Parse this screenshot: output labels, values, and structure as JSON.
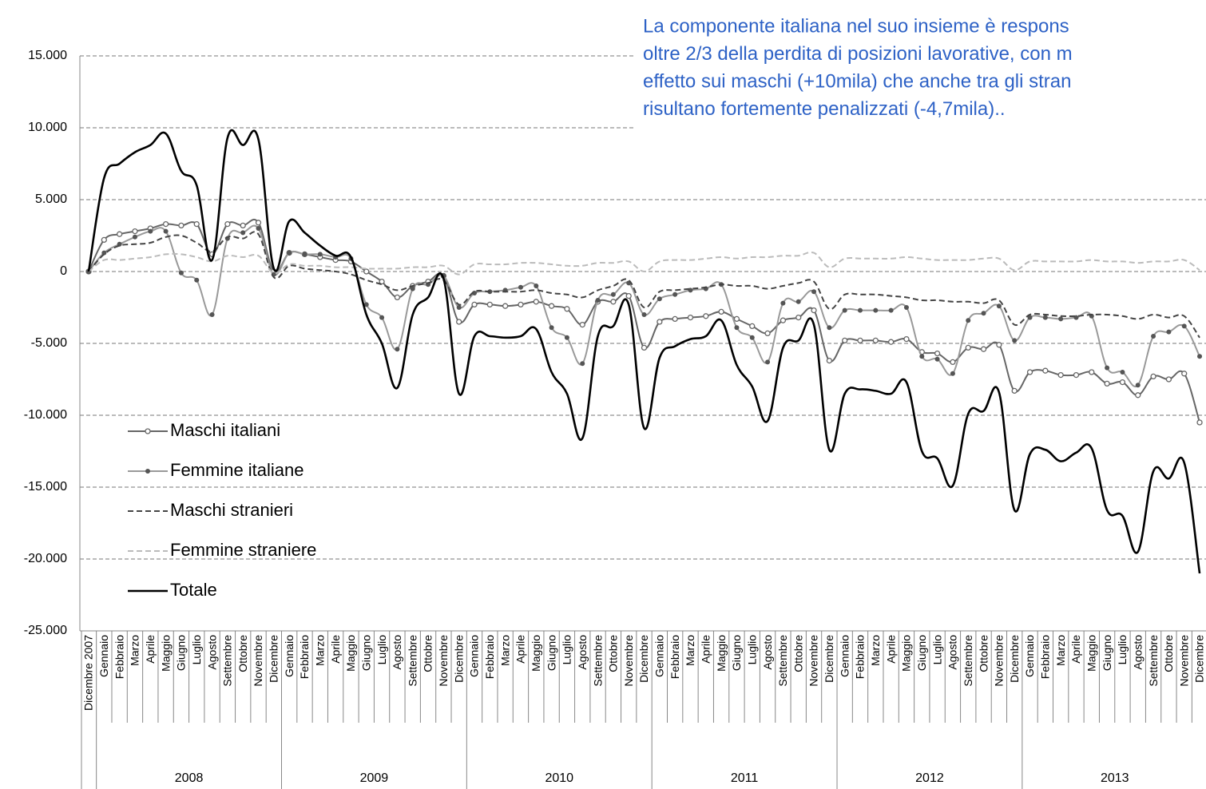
{
  "chart_data": {
    "type": "line",
    "annotation": [
      "La componente italiana nel suo insieme è respons",
      "oltre 2/3 della perdita di posizioni lavorative, con m",
      "effetto sui maschi (+10mila) che anche tra gli stran",
      "risultano fortemente penalizzati (-4,7mila).."
    ],
    "categories": [
      "Dicembre 2007",
      "Gennaio",
      "Febbraio",
      "Marzo",
      "Aprile",
      "Maggio",
      "Giugno",
      "Luglio",
      "Agosto",
      "Settembre",
      "Ottobre",
      "Novembre",
      "Dicembre",
      "Gennaio",
      "Febbraio",
      "Marzo",
      "Aprile",
      "Maggio",
      "Giugno",
      "Luglio",
      "Agosto",
      "Settembre",
      "Ottobre",
      "Novembre",
      "Dicembre",
      "Gennaio",
      "Febbraio",
      "Marzo",
      "Aprile",
      "Maggio",
      "Giugno",
      "Luglio",
      "Agosto",
      "Settembre",
      "Ottobre",
      "Novembre",
      "Dicembre",
      "Gennaio",
      "Febbraio",
      "Marzo",
      "Aprile",
      "Maggio",
      "Giugno",
      "Luglio",
      "Agosto",
      "Settembre",
      "Ottobre",
      "Novembre",
      "Dicembre",
      "Gennaio",
      "Febbraio",
      "Marzo",
      "Aprile",
      "Maggio",
      "Giugno",
      "Luglio",
      "Agosto",
      "Settembre",
      "Ottobre",
      "Novembre",
      "Dicembre",
      "Gennaio",
      "Febbraio",
      "Marzo",
      "Aprile",
      "Maggio",
      "Giugno",
      "Luglio",
      "Agosto",
      "Settembre",
      "Ottobre",
      "Novembre",
      "Dicembre"
    ],
    "years": [
      "2008",
      "2009",
      "2010",
      "2011",
      "2012",
      "2013"
    ],
    "ylim": [
      -25000,
      15000
    ],
    "yticks": [
      {
        "value": -25000,
        "label": "-25.000"
      },
      {
        "value": -20000,
        "label": "-20.000"
      },
      {
        "value": -15000,
        "label": "-15.000"
      },
      {
        "value": -10000,
        "label": "-10.000"
      },
      {
        "value": -5000,
        "label": "-5.000"
      },
      0,
      {
        "value": 5000,
        "label": "5.000"
      },
      {
        "value": 10000,
        "label": "10.000"
      },
      {
        "value": 15000,
        "label": "15.000"
      }
    ],
    "grid": true,
    "legend": "left",
    "series": [
      {
        "name": "Maschi italiani",
        "color": "#666666",
        "dash": "none",
        "marker": "open-circle",
        "values": [
          0,
          2200,
          2600,
          2800,
          3000,
          3300,
          3200,
          3300,
          1200,
          3300,
          3200,
          3400,
          0,
          1300,
          1200,
          1000,
          800,
          700,
          0,
          -700,
          -1800,
          -1000,
          -700,
          -300,
          -3500,
          -2300,
          -2300,
          -2400,
          -2300,
          -2100,
          -2400,
          -2600,
          -3700,
          -2100,
          -2100,
          -1700,
          -5300,
          -3500,
          -3300,
          -3200,
          -3100,
          -2800,
          -3300,
          -3800,
          -4300,
          -3400,
          -3200,
          -2700,
          -6200,
          -4800,
          -4800,
          -4800,
          -4900,
          -4700,
          -5600,
          -5700,
          -6300,
          -5300,
          -5400,
          -5100,
          -8300,
          -7000,
          -6900,
          -7200,
          -7200,
          -7000,
          -7800,
          -7700,
          -8600,
          -7300,
          -7500,
          -7100,
          -10500
        ]
      },
      {
        "name": "Femmine italiane",
        "color": "#999999",
        "dash": "none",
        "marker": "filled-circle",
        "values": [
          0,
          1300,
          1900,
          2400,
          2800,
          2800,
          -100,
          -600,
          -3000,
          2300,
          2700,
          3000,
          -200,
          1300,
          1200,
          1200,
          1000,
          900,
          -2300,
          -3200,
          -5400,
          -1200,
          -900,
          -300,
          -2500,
          -1500,
          -1400,
          -1300,
          -1100,
          -1000,
          -3900,
          -4600,
          -6400,
          -2000,
          -1600,
          -800,
          -3000,
          -1900,
          -1600,
          -1300,
          -1200,
          -900,
          -3900,
          -4600,
          -6300,
          -2200,
          -2100,
          -1400,
          -3900,
          -2700,
          -2700,
          -2700,
          -2700,
          -2500,
          -5900,
          -6100,
          -7100,
          -3400,
          -2900,
          -2400,
          -4800,
          -3200,
          -3200,
          -3300,
          -3200,
          -3100,
          -6700,
          -7000,
          -7900,
          -4500,
          -4200,
          -3800,
          -5900
        ]
      },
      {
        "name": "Maschi stranieri",
        "color": "#444444",
        "dash": "dashed",
        "marker": "none",
        "values": [
          0,
          1200,
          1800,
          1900,
          2000,
          2400,
          2500,
          2000,
          1400,
          2400,
          2300,
          2600,
          -400,
          400,
          200,
          100,
          0,
          -200,
          -600,
          -900,
          -1300,
          -1000,
          -800,
          -600,
          -2300,
          -1400,
          -1400,
          -1400,
          -1400,
          -1300,
          -1500,
          -1600,
          -1800,
          -1300,
          -1000,
          -600,
          -2500,
          -1400,
          -1300,
          -1200,
          -1100,
          -900,
          -1000,
          -1000,
          -1200,
          -1000,
          -800,
          -700,
          -2600,
          -1600,
          -1600,
          -1600,
          -1700,
          -1800,
          -2000,
          -2000,
          -2100,
          -2100,
          -2200,
          -2000,
          -3700,
          -3000,
          -3000,
          -3100,
          -3100,
          -3000,
          -3000,
          -3100,
          -3300,
          -3000,
          -3200,
          -3100,
          -4600
        ]
      },
      {
        "name": "Femmine straniere",
        "color": "#bbbbbb",
        "dash": "dashed",
        "marker": "none",
        "values": [
          0,
          800,
          800,
          900,
          1000,
          1200,
          1200,
          1000,
          700,
          1100,
          1000,
          1100,
          -100,
          500,
          400,
          400,
          300,
          300,
          200,
          200,
          200,
          300,
          300,
          400,
          -200,
          500,
          500,
          500,
          600,
          600,
          500,
          400,
          400,
          600,
          600,
          700,
          0,
          700,
          800,
          800,
          900,
          1000,
          900,
          1000,
          1000,
          1100,
          1100,
          1300,
          300,
          900,
          900,
          900,
          900,
          1000,
          900,
          800,
          800,
          800,
          900,
          900,
          100,
          700,
          700,
          700,
          700,
          800,
          700,
          700,
          600,
          700,
          700,
          800,
          100
        ]
      },
      {
        "name": "Totale",
        "color": "#000000",
        "dash": "none",
        "marker": "none",
        "values": [
          0,
          6500,
          7500,
          8300,
          8800,
          9600,
          7000,
          6000,
          800,
          9300,
          8800,
          9200,
          200,
          3500,
          2700,
          1800,
          1100,
          1000,
          -3000,
          -5000,
          -8100,
          -3000,
          -1800,
          -500,
          -8500,
          -4500,
          -4500,
          -4600,
          -4500,
          -4000,
          -7000,
          -8500,
          -11600,
          -4500,
          -3800,
          -2300,
          -10900,
          -6000,
          -5200,
          -4700,
          -4500,
          -3400,
          -6500,
          -8000,
          -10400,
          -5300,
          -4800,
          -3700,
          -12400,
          -8500,
          -8200,
          -8300,
          -8500,
          -7700,
          -12500,
          -13000,
          -14900,
          -9900,
          -9700,
          -8400,
          -16600,
          -12700,
          -12400,
          -13200,
          -12600,
          -12300,
          -16600,
          -17000,
          -19500,
          -13900,
          -14400,
          -13300,
          -21000
        ]
      }
    ]
  }
}
